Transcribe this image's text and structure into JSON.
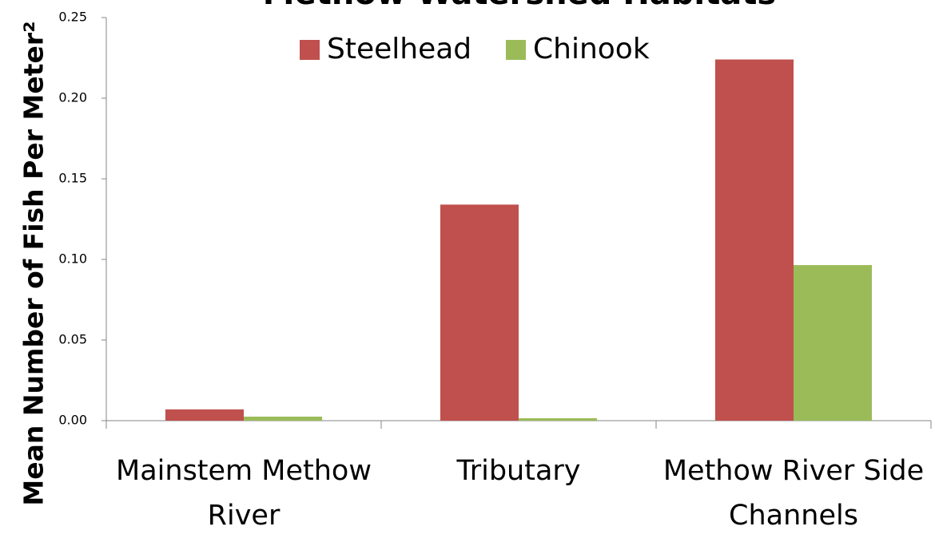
{
  "chart_data": {
    "type": "bar",
    "title": "Methow Watershed Habitats",
    "y_label": "Mean Number of Fish Per Meter²",
    "categories": [
      "Mainstem Methow River",
      "Tributary",
      "Methow River Side Channels"
    ],
    "series": [
      {
        "name": "Steelhead",
        "color": "#c0504d",
        "values": [
          0.007,
          0.134,
          0.224
        ]
      },
      {
        "name": "Chinook",
        "color": "#9bbb59",
        "values": [
          0.0025,
          0.0015,
          0.0965
        ]
      }
    ],
    "ylim": [
      0,
      0.25
    ],
    "yticks": [
      {
        "value": 0,
        "label": "0.00"
      },
      {
        "value": 0.05,
        "label": "0.05"
      },
      {
        "value": 0.1,
        "label": "0.10"
      },
      {
        "value": 0.15,
        "label": "0.15"
      },
      {
        "value": 0.2,
        "label": "0.20"
      },
      {
        "value": 0.25,
        "label": "0.25"
      }
    ],
    "legend": "top"
  }
}
